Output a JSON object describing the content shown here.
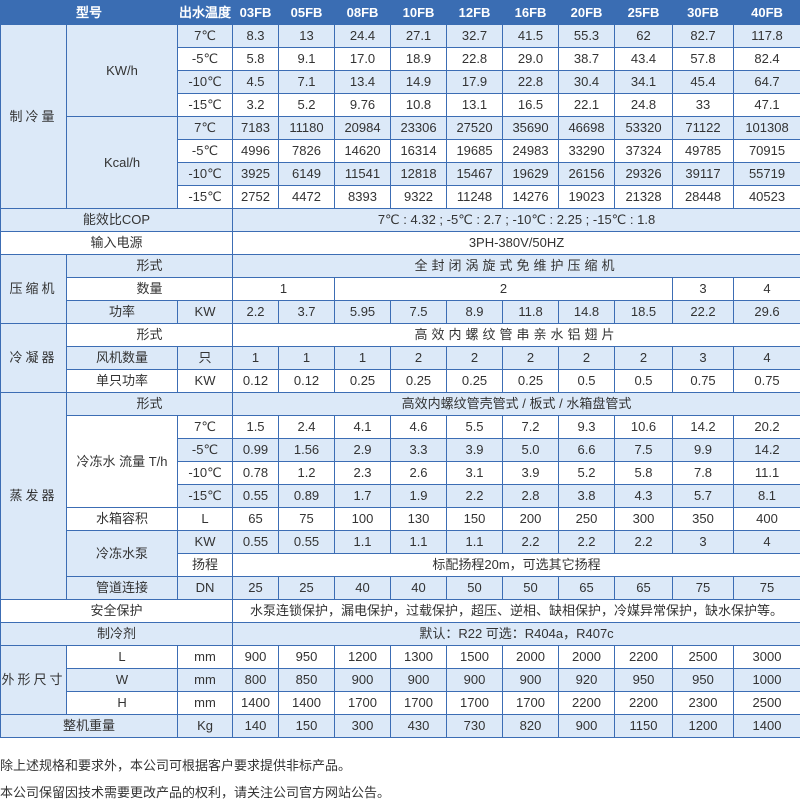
{
  "header": {
    "model_label": "型号",
    "temp_label": "出水温度",
    "models": [
      "03FB",
      "05FB",
      "08FB",
      "10FB",
      "12FB",
      "16FB",
      "20FB",
      "25FB",
      "30FB",
      "40FB"
    ]
  },
  "cooling": {
    "label": "制冷量",
    "kw_unit": "KW/h",
    "kcal_unit": "Kcal/h",
    "temps": [
      "7℃",
      "-5℃",
      "-10℃",
      "-15℃"
    ],
    "kw": [
      [
        "8.3",
        "13",
        "24.4",
        "27.1",
        "32.7",
        "41.5",
        "55.3",
        "62",
        "82.7",
        "117.8"
      ],
      [
        "5.8",
        "9.1",
        "17.0",
        "18.9",
        "22.8",
        "29.0",
        "38.7",
        "43.4",
        "57.8",
        "82.4"
      ],
      [
        "4.5",
        "7.1",
        "13.4",
        "14.9",
        "17.9",
        "22.8",
        "30.4",
        "34.1",
        "45.4",
        "64.7"
      ],
      [
        "3.2",
        "5.2",
        "9.76",
        "10.8",
        "13.1",
        "16.5",
        "22.1",
        "24.8",
        "33",
        "47.1"
      ]
    ],
    "kcal": [
      [
        "7183",
        "11180",
        "20984",
        "23306",
        "27520",
        "35690",
        "46698",
        "53320",
        "71122",
        "101308"
      ],
      [
        "4996",
        "7826",
        "14620",
        "16314",
        "19685",
        "24983",
        "33290",
        "37324",
        "49785",
        "70915"
      ],
      [
        "3925",
        "6149",
        "11541",
        "12818",
        "15467",
        "19629",
        "26156",
        "29326",
        "39117",
        "55719"
      ],
      [
        "2752",
        "4472",
        "8393",
        "9322",
        "11248",
        "14276",
        "19023",
        "21328",
        "28448",
        "40523"
      ]
    ]
  },
  "cop": {
    "label": "能效比COP",
    "value": "7℃ : 4.32 ;      -5℃ : 2.7 ;      -10℃ : 2.25 ;      -15℃ : 1.8"
  },
  "power_supply": {
    "label": "输入电源",
    "value": "3PH-380V/50HZ"
  },
  "compressor": {
    "label": "压缩机",
    "type_label": "形式",
    "type_value": "全封闭涡旋式免维护压缩机",
    "qty_label": "数量",
    "qty": [
      "1",
      "2",
      "3",
      "4"
    ],
    "power_label": "功率",
    "power_unit": "KW",
    "power": [
      "2.2",
      "3.7",
      "5.95",
      "7.5",
      "8.9",
      "11.8",
      "14.8",
      "18.5",
      "22.2",
      "29.6"
    ]
  },
  "condenser": {
    "label": "冷凝器",
    "type_label": "形式",
    "type_value": "高效内螺纹管串亲水铝翅片",
    "fan_label": "风机数量",
    "fan_unit": "只",
    "fans": [
      "1",
      "1",
      "1",
      "2",
      "2",
      "2",
      "2",
      "2",
      "3",
      "4"
    ],
    "fan_power_label": "单只功率",
    "fan_power_unit": "KW",
    "fan_power": [
      "0.12",
      "0.12",
      "0.25",
      "0.25",
      "0.25",
      "0.25",
      "0.5",
      "0.5",
      "0.75",
      "0.75"
    ]
  },
  "evaporator": {
    "label": "蒸发器",
    "type_label": "形式",
    "type_value": "高效内螺纹管壳管式 / 板式 / 水箱盘管式",
    "flow_label": "冷冻水 流量 T/h",
    "temps": [
      "7℃",
      "-5℃",
      "-10℃",
      "-15℃"
    ],
    "flow": [
      [
        "1.5",
        "2.4",
        "4.1",
        "4.6",
        "5.5",
        "7.2",
        "9.3",
        "10.6",
        "14.2",
        "20.2"
      ],
      [
        "0.99",
        "1.56",
        "2.9",
        "3.3",
        "3.9",
        "5.0",
        "6.6",
        "7.5",
        "9.9",
        "14.2"
      ],
      [
        "0.78",
        "1.2",
        "2.3",
        "2.6",
        "3.1",
        "3.9",
        "5.2",
        "5.8",
        "7.8",
        "11.1"
      ],
      [
        "0.55",
        "0.89",
        "1.7",
        "1.9",
        "2.2",
        "2.8",
        "3.8",
        "4.3",
        "5.7",
        "8.1"
      ]
    ],
    "tank_label": "水箱容积",
    "tank_unit": "L",
    "tank": [
      "65",
      "75",
      "100",
      "130",
      "150",
      "200",
      "250",
      "300",
      "350",
      "400"
    ],
    "pump_label": "冷冻水泵",
    "pump_unit": "KW",
    "pump": [
      "0.55",
      "0.55",
      "1.1",
      "1.1",
      "1.1",
      "2.2",
      "2.2",
      "2.2",
      "3",
      "4"
    ],
    "head_label": "扬程",
    "head_value": "标配扬程20m，可选其它扬程",
    "pipe_label": "管道连接",
    "pipe_unit": "DN",
    "pipe": [
      "25",
      "25",
      "40",
      "40",
      "50",
      "50",
      "65",
      "65",
      "75",
      "75"
    ]
  },
  "safety": {
    "label": "安全保护",
    "value": "水泵连锁保护，漏电保护，过载保护，超压、逆相、缺相保护，冷媒异常保护，缺水保护等。"
  },
  "refrigerant": {
    "label": "制冷剂",
    "value": "默认：R22   可选：R404a，R407c"
  },
  "dimensions": {
    "label": "外形尺寸",
    "unit": "mm",
    "rows": [
      {
        "label": "L",
        "values": [
          "900",
          "950",
          "1200",
          "1300",
          "1500",
          "2000",
          "2000",
          "2200",
          "2500",
          "3000"
        ]
      },
      {
        "label": "W",
        "values": [
          "800",
          "850",
          "900",
          "900",
          "900",
          "900",
          "920",
          "950",
          "950",
          "1000"
        ]
      },
      {
        "label": "H",
        "values": [
          "1400",
          "1400",
          "1700",
          "1700",
          "1700",
          "1700",
          "2200",
          "2200",
          "2300",
          "2500"
        ]
      }
    ]
  },
  "weight": {
    "label": "整机重量",
    "unit": "Kg",
    "values": [
      "140",
      "150",
      "300",
      "430",
      "730",
      "820",
      "900",
      "1150",
      "1200",
      "1400"
    ]
  },
  "notes": [
    "除上述规格和要求外，本公司可根据客户要求提供非标产品。",
    "本公司保留因技术需要更改产品的权利，请关注公司官方网站公告。"
  ]
}
